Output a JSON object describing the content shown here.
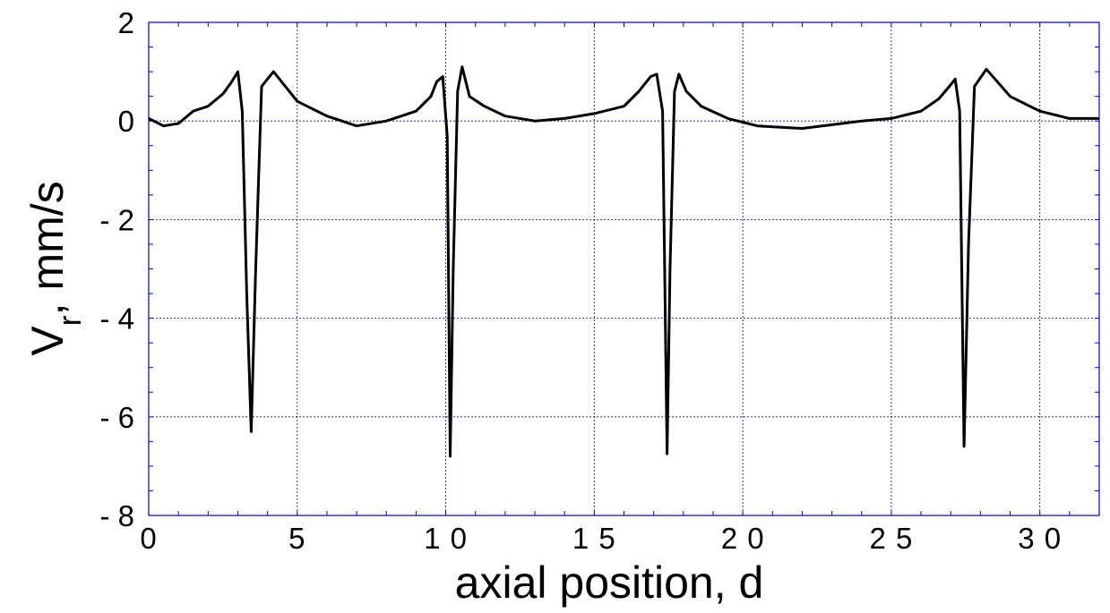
{
  "chart_data": {
    "type": "line",
    "xlabel": "axial position, d",
    "ylabel": "V",
    "ylabel_subscript": "r",
    "ylabel_suffix": ",  mm/s",
    "xlim": [
      0,
      32
    ],
    "ylim": [
      -8,
      2
    ],
    "x_ticks": [
      {
        "value": 0,
        "label": "0"
      },
      {
        "value": 5,
        "label": "5"
      },
      {
        "value": 10,
        "label": "1 0"
      },
      {
        "value": 15,
        "label": "1 5"
      },
      {
        "value": 20,
        "label": "2 0"
      },
      {
        "value": 25,
        "label": "2 5"
      },
      {
        "value": 30,
        "label": "3 0"
      }
    ],
    "y_ticks": [
      {
        "value": 2,
        "label": "2"
      },
      {
        "value": 0,
        "label": "0"
      },
      {
        "value": -2,
        "label": "- 2"
      },
      {
        "value": -4,
        "label": "- 4"
      },
      {
        "value": -6,
        "label": "- 6"
      },
      {
        "value": -8,
        "label": "- 8"
      }
    ],
    "grid": true,
    "colors": {
      "line": "#000000",
      "grid": "#00008b",
      "frame": "#0000cd"
    },
    "series": [
      {
        "x": [
          0,
          0.5,
          1.0,
          1.5,
          2.0,
          2.5,
          2.8,
          3.0,
          3.15,
          3.3,
          3.45,
          3.6,
          3.8,
          4.2,
          5.0,
          6.0,
          7.0,
          8.0,
          9.0,
          9.5,
          9.7,
          9.9,
          10.05,
          10.15,
          10.25,
          10.4,
          10.55,
          10.8,
          11.3,
          12.0,
          13.0,
          14.0,
          15.0,
          16.0,
          16.5,
          16.9,
          17.1,
          17.3,
          17.45,
          17.55,
          17.7,
          17.85,
          18.1,
          18.6,
          19.5,
          20.5,
          22.0,
          24.0,
          25.0,
          26.0,
          26.6,
          26.95,
          27.15,
          27.3,
          27.45,
          27.6,
          27.8,
          28.2,
          29.0,
          30.0,
          31.0,
          32.0
        ],
        "y": [
          0.05,
          -0.1,
          -0.05,
          0.2,
          0.3,
          0.55,
          0.8,
          1.0,
          0.2,
          -3.5,
          -6.3,
          -3.0,
          0.7,
          1.0,
          0.4,
          0.1,
          -0.1,
          0.0,
          0.2,
          0.5,
          0.8,
          0.9,
          -0.3,
          -6.8,
          -3.0,
          0.6,
          1.1,
          0.5,
          0.3,
          0.1,
          0.0,
          0.05,
          0.15,
          0.3,
          0.6,
          0.9,
          0.95,
          0.2,
          -6.75,
          -3.0,
          0.6,
          0.95,
          0.6,
          0.3,
          0.05,
          -0.1,
          -0.15,
          0.0,
          0.05,
          0.2,
          0.45,
          0.7,
          0.85,
          0.2,
          -6.6,
          -2.5,
          0.7,
          1.05,
          0.5,
          0.2,
          0.05,
          0.05
        ]
      }
    ]
  }
}
